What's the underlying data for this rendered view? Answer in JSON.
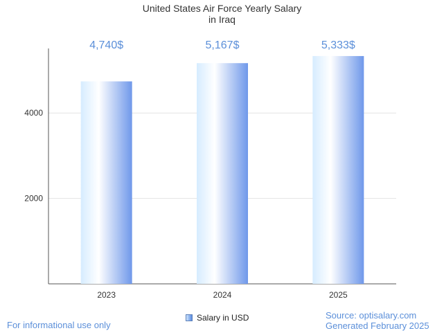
{
  "chart_data": {
    "type": "bar",
    "title_lines": [
      "United States Air Force Yearly Salary",
      "in Iraq"
    ],
    "categories": [
      "2023",
      "2024",
      "2025"
    ],
    "values": [
      4740,
      5167,
      5333
    ],
    "data_labels": [
      "4,740$",
      "5,167$",
      "5,333$"
    ],
    "series": [
      {
        "name": "Salary in USD",
        "values": [
          4740,
          5167,
          5333
        ]
      }
    ],
    "yticks": [
      2000,
      4000
    ],
    "ylim": [
      0,
      5500
    ],
    "xlabel": "",
    "ylabel": "",
    "grid": true,
    "legend_position": "bottom-center"
  },
  "footer": {
    "disclaimer": "For informational use only",
    "source": "Source: optisalary.com",
    "generated": "Generated February 2025"
  },
  "colors": {
    "bar_light": "#d6ecff",
    "bar_mid": "#ffffff",
    "bar_dark": "#6f98ea",
    "label": "#5b8fd9",
    "axis": "#555555",
    "grid": "#e3e3e3"
  }
}
